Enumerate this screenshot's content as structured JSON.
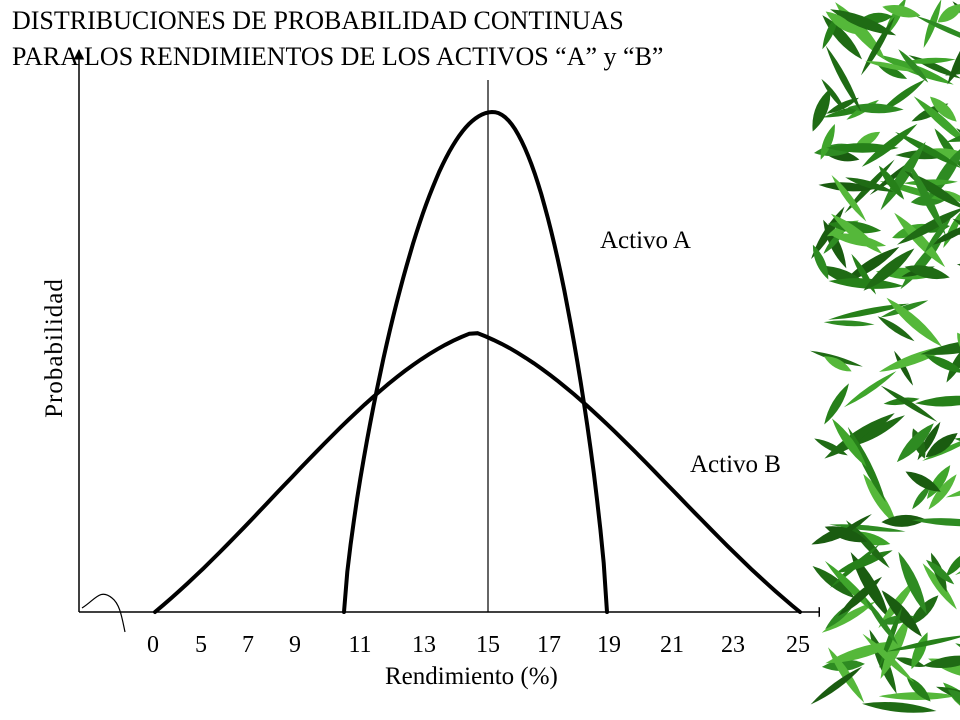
{
  "title_lines": [
    "DISTRIBUCIONES DE PROBABILIDAD CONTINUAS",
    "PARA LOS RENDIMIENTOS DE LOS ACTIVOS “A” y “B”"
  ],
  "chart_data": {
    "type": "line",
    "title": "DISTRIBUCIONES DE PROBABILIDAD CONTINUAS PARA LOS RENDIMIENTOS DE LOS ACTIVOS “A” y “B”",
    "xlabel": "Rendimiento (%)",
    "ylabel": "Probabilidad",
    "x_tick_labels": [
      "0",
      "5",
      "7",
      "9",
      "11",
      "13",
      "15",
      "17",
      "19",
      "21",
      "23",
      "25"
    ],
    "mean_line_x_label": "15",
    "series": [
      {
        "name": "Activo A",
        "x_range": [
          "11",
          "19"
        ],
        "peak_at": "15",
        "relative_peak": 1.0
      },
      {
        "name": "Activo B",
        "x_range": [
          "0",
          "25"
        ],
        "peak_at": "15",
        "relative_peak": 0.56
      }
    ],
    "grid": false,
    "colors": {
      "curves": "#000000",
      "axes": "#000000",
      "background_decoration": "#2e8b22"
    }
  }
}
